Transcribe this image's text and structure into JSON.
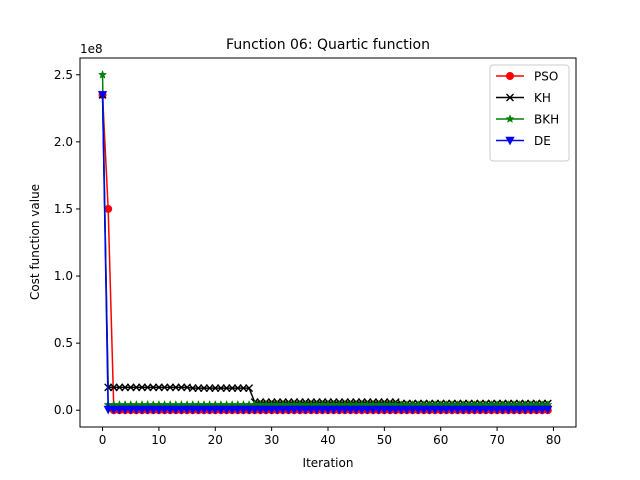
{
  "chart_data": {
    "type": "line",
    "title": "Function 06: Quartic function",
    "xlabel": "Iteration",
    "ylabel": "Cost function value",
    "y_offset_text": "1e8",
    "y_scale_factor": 100000000,
    "xlim": [
      -4,
      84
    ],
    "ylim": [
      -12500000,
      262500000
    ],
    "x_ticks": [
      0,
      10,
      20,
      30,
      40,
      50,
      60,
      70,
      80
    ],
    "x_tick_labels": [
      "0",
      "10",
      "20",
      "30",
      "40",
      "50",
      "60",
      "70",
      "80"
    ],
    "y_ticks": [
      0,
      50000000,
      100000000,
      150000000,
      200000000,
      250000000
    ],
    "y_tick_labels": [
      "0.0",
      "0.5",
      "1.0",
      "1.5",
      "2.0",
      "2.5"
    ],
    "grid": false,
    "legend_position": "top-right",
    "series": [
      {
        "name": "PSO",
        "color": "#ff0000",
        "marker": "circle",
        "segments": [
          {
            "x_from": 0,
            "x_to": 0,
            "value": 235000000
          },
          {
            "x_from": 1,
            "x_to": 1,
            "value": 150000000
          },
          {
            "x_from": 2,
            "x_to": 79,
            "value": 0
          }
        ]
      },
      {
        "name": "KH",
        "color": "#000000",
        "marker": "x",
        "segments": [
          {
            "x_from": 0,
            "x_to": 0,
            "value": 235000000
          },
          {
            "x_from": 1,
            "x_to": 15,
            "value": 17000000
          },
          {
            "x_from": 16,
            "x_to": 26,
            "value": 16500000
          },
          {
            "x_from": 27,
            "x_to": 52,
            "value": 6000000
          },
          {
            "x_from": 53,
            "x_to": 79,
            "value": 5000000
          }
        ]
      },
      {
        "name": "BKH",
        "color": "#008000",
        "marker": "star",
        "segments": [
          {
            "x_from": 0,
            "x_to": 0,
            "value": 250000000
          },
          {
            "x_from": 1,
            "x_to": 79,
            "value": 4000000
          }
        ]
      },
      {
        "name": "DE",
        "color": "#0000ff",
        "marker": "triangle-down",
        "segments": [
          {
            "x_from": 0,
            "x_to": 0,
            "value": 235000000
          },
          {
            "x_from": 1,
            "x_to": 79,
            "value": 500000
          }
        ]
      }
    ]
  }
}
